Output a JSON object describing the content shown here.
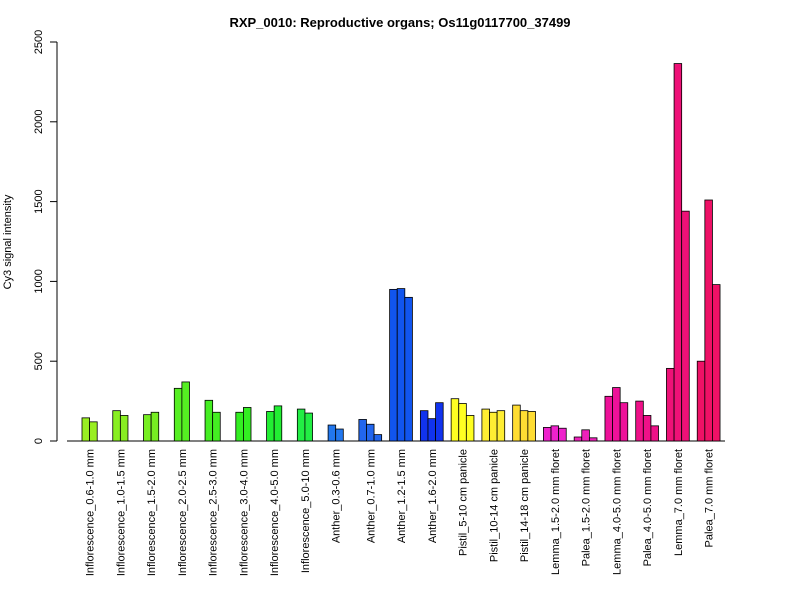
{
  "chart_data": {
    "type": "bar",
    "title": "RXP_0010: Reproductive organs; Os11g0117700_37499",
    "xlabel": "",
    "ylabel": "Cy3 signal intensity",
    "ylim": [
      0,
      2500
    ],
    "yticks": [
      0,
      500,
      1000,
      1500,
      2000,
      2500
    ],
    "grid": false,
    "legend": "none",
    "groups": [
      {
        "label": "Inflorescence_0.6-1.0 mm",
        "color": "#99ee22",
        "values": [
          145,
          120
        ]
      },
      {
        "label": "Inflorescence_1.0-1.5 mm",
        "color": "#88ee22",
        "values": [
          190,
          160
        ]
      },
      {
        "label": "Inflorescence_1.5-2.0 mm",
        "color": "#77ee22",
        "values": [
          165,
          180
        ]
      },
      {
        "label": "Inflorescence_2.0-2.5 mm",
        "color": "#55ee22",
        "values": [
          330,
          370
        ]
      },
      {
        "label": "Inflorescence_2.5-3.0 mm",
        "color": "#44ee22",
        "values": [
          255,
          180
        ]
      },
      {
        "label": "Inflorescence_3.0-4.0 mm",
        "color": "#33ee22",
        "values": [
          180,
          210
        ]
      },
      {
        "label": "Inflorescence_4.0-5.0 mm",
        "color": "#22ee33",
        "values": [
          185,
          220
        ]
      },
      {
        "label": "Inflorescence_5.0-10 mm",
        "color": "#22ee44",
        "values": [
          200,
          175
        ]
      },
      {
        "label": "Anther_0.3-0.6 mm",
        "color": "#2277ee",
        "values": [
          100,
          75
        ]
      },
      {
        "label": "Anther_0.7-1.0 mm",
        "color": "#2266ee",
        "values": [
          135,
          105,
          40
        ]
      },
      {
        "label": "Anther_1.2-1.5 mm",
        "color": "#1155ee",
        "values": [
          950,
          955,
          900
        ]
      },
      {
        "label": "Anther_1.6-2.0 mm",
        "color": "#1133ee",
        "values": [
          190,
          140,
          240
        ]
      },
      {
        "label": "Pistil_5-10 cm panicle",
        "color": "#ffff22",
        "values": [
          265,
          235,
          160
        ]
      },
      {
        "label": "Pistil_10-14 cm panicle",
        "color": "#ffee33",
        "values": [
          200,
          180,
          190
        ]
      },
      {
        "label": "Pistil_14-18 cm panicle",
        "color": "#ffdd33",
        "values": [
          225,
          190,
          185
        ]
      },
      {
        "label": "Lemma_1.5-2.0 mm floret",
        "color": "#ee22cc",
        "values": [
          85,
          95,
          80
        ]
      },
      {
        "label": "Palea_1.5-2.0 mm floret",
        "color": "#ee22bb",
        "values": [
          25,
          70,
          20
        ]
      },
      {
        "label": "Lemma_4.0-5.0 mm floret",
        "color": "#ee1199",
        "values": [
          280,
          335,
          240
        ]
      },
      {
        "label": "Palea_4.0-5.0 mm floret",
        "color": "#ee1188",
        "values": [
          250,
          160,
          95
        ]
      },
      {
        "label": "Lemma_7.0 mm floret",
        "color": "#ee1177",
        "values": [
          455,
          2365,
          1440
        ]
      },
      {
        "label": "Palea_7.0 mm floret",
        "color": "#ee1166",
        "values": [
          500,
          1510,
          980
        ]
      }
    ]
  }
}
